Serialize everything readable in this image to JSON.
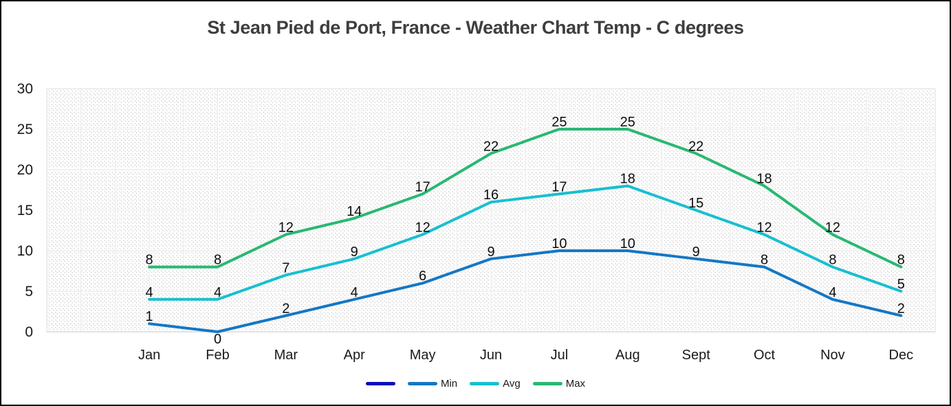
{
  "title": "St Jean Pied de Port, France - Weather Chart Temp - C degrees",
  "chart_data": {
    "type": "line",
    "title": "St Jean Pied de Port, France - Weather Chart Temp - C degrees",
    "categories": [
      "Jan",
      "Feb",
      "Mar",
      "Apr",
      "May",
      "Jun",
      "Jul",
      "Aug",
      "Sept",
      "Oct",
      "Nov",
      "Dec"
    ],
    "series": [
      {
        "name": "",
        "color": "#0A0ABE",
        "values": []
      },
      {
        "name": "Min",
        "color": "#1577C4",
        "values": [
          1,
          0,
          2,
          4,
          6,
          9,
          10,
          10,
          9,
          8,
          4,
          2
        ]
      },
      {
        "name": "Avg",
        "color": "#18BFD0",
        "values": [
          4,
          4,
          7,
          9,
          12,
          16,
          17,
          18,
          15,
          12,
          8,
          5
        ]
      },
      {
        "name": "Max",
        "color": "#29B873",
        "values": [
          8,
          8,
          12,
          14,
          17,
          22,
          25,
          25,
          22,
          18,
          12,
          8
        ]
      }
    ],
    "ylim": [
      0,
      30
    ],
    "yticks": [
      0,
      5,
      10,
      15,
      20,
      25,
      30
    ],
    "grid": true,
    "data_labels": true,
    "legend_position": "bottom",
    "plot_background": "diagonal-hatch"
  },
  "colors": {
    "title_text": "#3E3E3E",
    "axis_text": "#1A1A1A",
    "data_label_text": "#0D0D0D",
    "gridline_white": "#FFFFFF",
    "gridline_gray": "#E4E4E4",
    "hatch": "#C6C6C6",
    "axis_line": "#CFCFCF"
  }
}
